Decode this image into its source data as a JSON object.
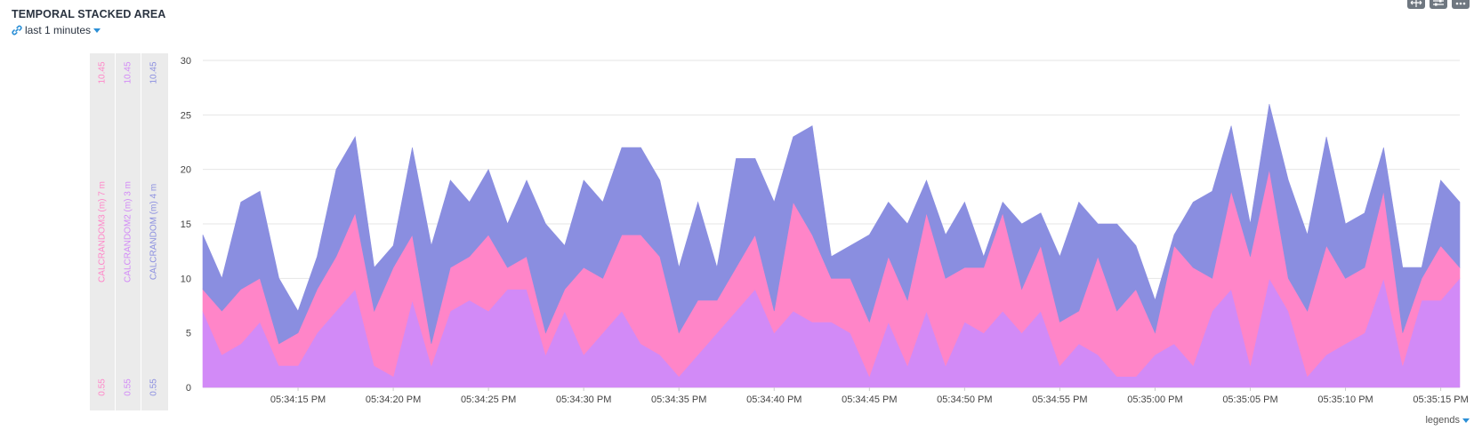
{
  "header": {
    "title": "TEMPORAL STACKED AREA",
    "time_range": "last 1 minutes"
  },
  "toolbar": {
    "icons": [
      "fullscreen-icon",
      "settings-sliders-icon",
      "more-icon"
    ]
  },
  "legends_label": "legends",
  "axes": [
    {
      "name": "CALCRANDOM3 (m)",
      "value": "7 m",
      "max": "10.45",
      "min": "0.55",
      "color": "#ff85c8"
    },
    {
      "name": "CALCRANDOM2 (m)",
      "value": "3 m",
      "max": "10.45",
      "min": "0.55",
      "color": "#d28af7"
    },
    {
      "name": "CALCRANDOM (m)",
      "value": "4 m",
      "max": "10.45",
      "min": "0.55",
      "color": "#8a8ee0"
    }
  ],
  "chart_data": {
    "type": "area",
    "stacked": true,
    "ylim": [
      0,
      30
    ],
    "yticks": [
      0,
      5,
      10,
      15,
      20,
      25,
      30
    ],
    "x_start": "05:34:10",
    "x_step_seconds": 1,
    "xticks": [
      "05:34:15 PM",
      "05:34:20 PM",
      "05:34:25 PM",
      "05:34:30 PM",
      "05:34:35 PM",
      "05:34:40 PM",
      "05:34:45 PM",
      "05:34:50 PM",
      "05:34:55 PM",
      "05:35:00 PM",
      "05:35:05 PM",
      "05:35:10 PM",
      "05:35:15 PM"
    ],
    "series": [
      {
        "color": "#d28af7",
        "values": [
          7,
          3,
          4,
          6,
          2,
          2,
          5,
          7,
          9,
          2,
          1,
          8,
          2,
          7,
          8,
          7,
          9,
          9,
          3,
          7,
          3,
          5,
          7,
          4,
          3,
          1,
          3,
          5,
          7,
          9,
          5,
          7,
          6,
          6,
          5,
          1,
          6,
          2,
          7,
          2,
          6,
          5,
          7,
          5,
          7,
          2,
          4,
          3,
          1,
          1,
          3,
          4,
          2,
          7,
          9,
          2,
          10,
          7,
          1,
          3,
          4,
          5,
          10,
          2,
          8,
          8,
          10
        ]
      },
      {
        "color": "#ff85c8",
        "values": [
          2,
          4,
          5,
          4,
          2,
          3,
          4,
          5,
          7,
          5,
          10,
          6,
          2,
          4,
          4,
          7,
          2,
          3,
          2,
          2,
          8,
          5,
          7,
          10,
          9,
          4,
          5,
          3,
          4,
          5,
          2,
          10,
          8,
          4,
          5,
          5,
          6,
          6,
          9,
          8,
          5,
          6,
          9,
          4,
          6,
          4,
          3,
          9,
          6,
          8,
          2,
          9,
          9,
          3,
          9,
          10,
          10,
          3,
          6,
          10,
          6,
          6,
          8,
          3,
          2,
          5,
          1
        ]
      },
      {
        "color": "#8a8ee0",
        "values": [
          5,
          3,
          8,
          8,
          6,
          2,
          3,
          8,
          7,
          4,
          2,
          8,
          9,
          8,
          5,
          6,
          4,
          7,
          10,
          4,
          8,
          7,
          8,
          8,
          7,
          6,
          9,
          3,
          10,
          7,
          10,
          6,
          10,
          2,
          3,
          8,
          5,
          7,
          3,
          4,
          6,
          1,
          1,
          6,
          3,
          6,
          10,
          3,
          8,
          4,
          3,
          1,
          6,
          8,
          6,
          3,
          6,
          9,
          7,
          10,
          5,
          5,
          4,
          6,
          1,
          6,
          6
        ]
      }
    ]
  }
}
